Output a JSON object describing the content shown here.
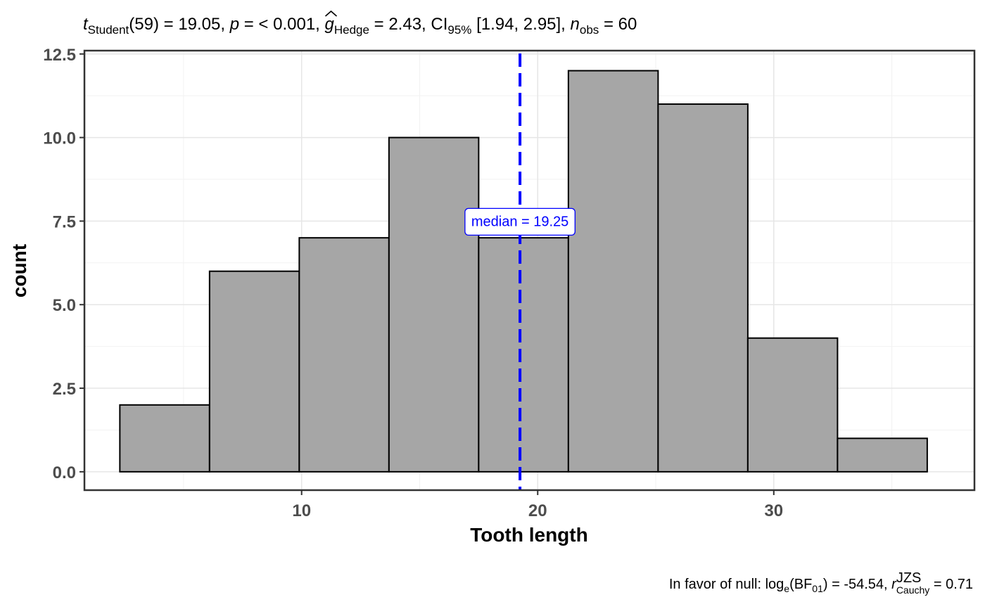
{
  "chart_data": {
    "type": "bar",
    "subtitle": {
      "t_symbol": "t",
      "t_sub": "Student",
      "t_stat": "(59) = 19.05, ",
      "p_symbol": "p",
      "p_text": " = < 0.001, ",
      "g_symbol": "g",
      "g_sub": "Hedge",
      "g_text": " = 2.43, CI",
      "ci_sub": "95%",
      "ci_text": " [1.94, 2.95], ",
      "n_symbol": "n",
      "n_sub": "obs",
      "n_text": " = 60"
    },
    "caption": {
      "prefix": "In favor of null: log",
      "log_sub": "e",
      "bf_open": "(BF",
      "bf_sub": "01",
      "bf_text": ") = -54.54, ",
      "r_symbol": "r",
      "r_sup": "JZS",
      "r_sub": "Cauchy",
      "r_text": " = 0.71"
    },
    "xlabel": "Tooth length",
    "ylabel": "count",
    "xlim": [
      0.8,
      38.5
    ],
    "ylim": [
      -0.55,
      12.6
    ],
    "xticks": [
      10,
      20,
      30
    ],
    "xtick_labels": [
      "10",
      "20",
      "30"
    ],
    "yticks": [
      0,
      2.5,
      5,
      7.5,
      10,
      12.5
    ],
    "ytick_labels": [
      "0.0",
      "2.5",
      "5.0",
      "7.5",
      "10.0",
      "12.5"
    ],
    "grid": true,
    "bins": [
      {
        "x0": 2.3,
        "x1": 6.1,
        "count": 2
      },
      {
        "x0": 6.1,
        "x1": 9.9,
        "count": 6
      },
      {
        "x0": 9.9,
        "x1": 13.7,
        "count": 7
      },
      {
        "x0": 13.7,
        "x1": 17.5,
        "count": 10
      },
      {
        "x0": 17.5,
        "x1": 21.3,
        "count": 7
      },
      {
        "x0": 21.3,
        "x1": 25.1,
        "count": 12
      },
      {
        "x0": 25.1,
        "x1": 28.9,
        "count": 11
      },
      {
        "x0": 28.9,
        "x1": 32.7,
        "count": 4
      },
      {
        "x0": 32.7,
        "x1": 36.5,
        "count": 1
      }
    ],
    "median": {
      "value": 19.25,
      "label": "median = 19.25",
      "color": "#0000ff"
    },
    "bar_color": "#a6a6a6",
    "bar_edge_color": "#000000"
  }
}
